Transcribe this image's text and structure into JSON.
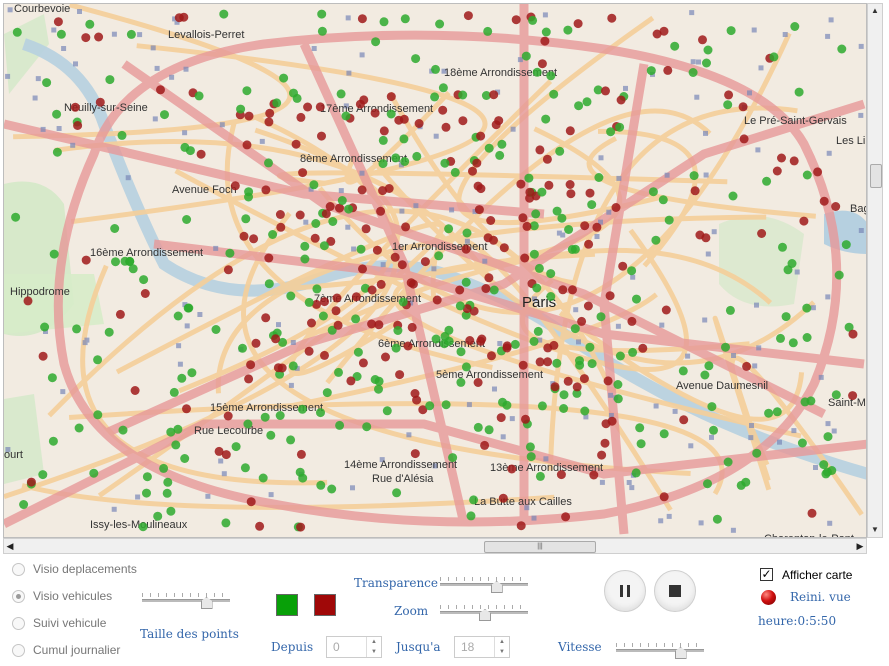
{
  "map": {
    "labels": [
      {
        "text": "Courbevoie"
      },
      {
        "text": "Levallois-Perret"
      },
      {
        "text": "18ème Arrondissement"
      },
      {
        "text": "17ème Arrondissement"
      },
      {
        "text": "Neuilly-sur-Seine"
      },
      {
        "text": "Le Pré-Saint-Gervais"
      },
      {
        "text": "Les Li"
      },
      {
        "text": "8ème Arrondissement"
      },
      {
        "text": "Avenue Foch"
      },
      {
        "text": "16ème Arrondissement"
      },
      {
        "text": "1er Arrondissement"
      },
      {
        "text": "Paris"
      },
      {
        "text": "Hippodrome"
      },
      {
        "text": "7ème Arrondissement"
      },
      {
        "text": "6ème Arrondissement"
      },
      {
        "text": "5ème Arrondissement"
      },
      {
        "text": "Avenue Daumesnil"
      },
      {
        "text": "Saint-M"
      },
      {
        "text": "15ème Arrondissement"
      },
      {
        "text": "Rue Lecourbe"
      },
      {
        "text": "14ème Arrondissement"
      },
      {
        "text": "13ème Arrondissement"
      },
      {
        "text": "Rue d'Alésia"
      },
      {
        "text": "La Butte aux Cailles"
      },
      {
        "text": "Issy-les-Moulineaux"
      },
      {
        "text": "Charenton-le-Pont"
      },
      {
        "text": "ourt"
      },
      {
        "text": "Bag"
      }
    ],
    "colors": {
      "background": "#f2ebe1",
      "major_road": "#e79999",
      "secondary_road": "#f5cf9a",
      "green_vehicle": "#2eaa2e",
      "red_vehicle": "#a01a1a",
      "park": "#cfe8c4",
      "water": "#b6d0e0"
    }
  },
  "controls": {
    "modes": [
      {
        "label": "Visio deplacements",
        "selected": false
      },
      {
        "label": "Visio vehicules",
        "selected": true
      },
      {
        "label": "Suivi vehicule",
        "selected": false
      },
      {
        "label": "Cumul journalier",
        "selected": false
      }
    ],
    "point_size_label": "Taille des points",
    "point_size_value": 0.75,
    "swatch_colors": [
      "#08a008",
      "#a00808"
    ],
    "transparence_label": "Transparence",
    "transparence_value": 0.65,
    "zoom_label": "Zoom",
    "zoom_value": 0.5,
    "depuis_label": "Depuis",
    "depuis_value": "0",
    "jusqua_label": "Jusqu'a",
    "jusqua_value": "18",
    "vitesse_label": "Vitesse",
    "vitesse_value": 0.75,
    "afficher_carte_label": "Afficher carte",
    "afficher_carte_checked": true,
    "reset_view_label": "Reini. vue",
    "heure_label": "heure:",
    "heure_value": "0:5:50"
  }
}
